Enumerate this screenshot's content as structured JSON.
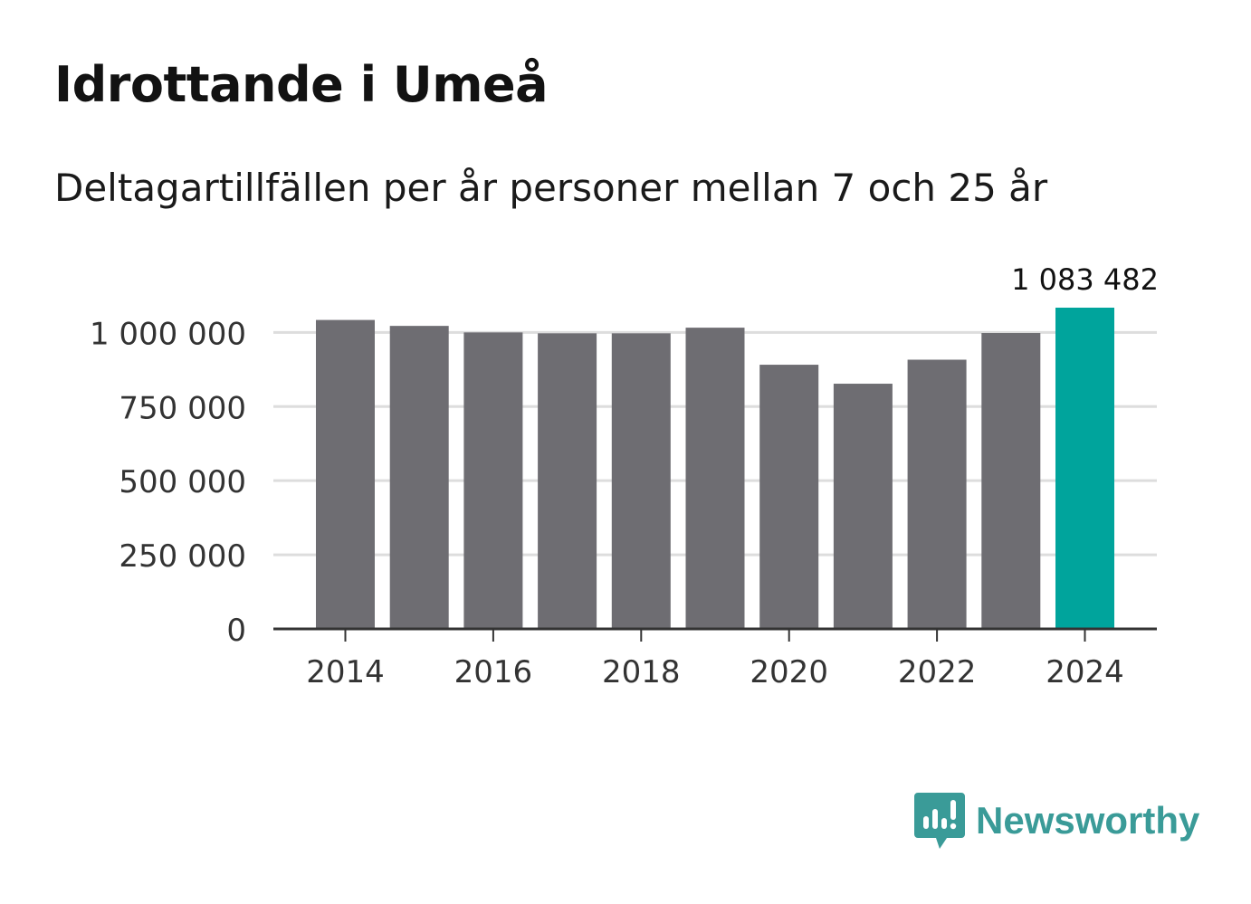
{
  "title": "Idrottande i Umeå",
  "subtitle": "Deltagartillfällen per år personer mellan 7 och 25 år",
  "brand": {
    "name": "Newsworthy",
    "icon": "newsworthy-logo-icon",
    "color": "#3a9b98"
  },
  "colors": {
    "bar": "#6e6d72",
    "highlight": "#00a49c",
    "grid": "#dddddd",
    "axis": "#333333"
  },
  "chart_data": {
    "type": "bar",
    "categories": [
      "2014",
      "2015",
      "2016",
      "2017",
      "2018",
      "2019",
      "2020",
      "2021",
      "2022",
      "2023",
      "2024"
    ],
    "values": [
      1042000,
      1022000,
      1000000,
      997000,
      997000,
      1016000,
      891000,
      827000,
      908000,
      998000,
      1083482
    ],
    "highlight_index": 10,
    "highlight_label": "1 083 482",
    "y_ticks": [
      0,
      250000,
      500000,
      750000,
      1000000
    ],
    "y_tick_labels": [
      "0",
      "250 000",
      "500 000",
      "750 000",
      "1 000 000"
    ],
    "x_tick_labels": [
      "2014",
      "2016",
      "2018",
      "2020",
      "2022",
      "2024"
    ],
    "ylim": [
      0,
      1083482
    ],
    "xlabel": "",
    "ylabel": "",
    "grid": true,
    "legend": "none"
  }
}
